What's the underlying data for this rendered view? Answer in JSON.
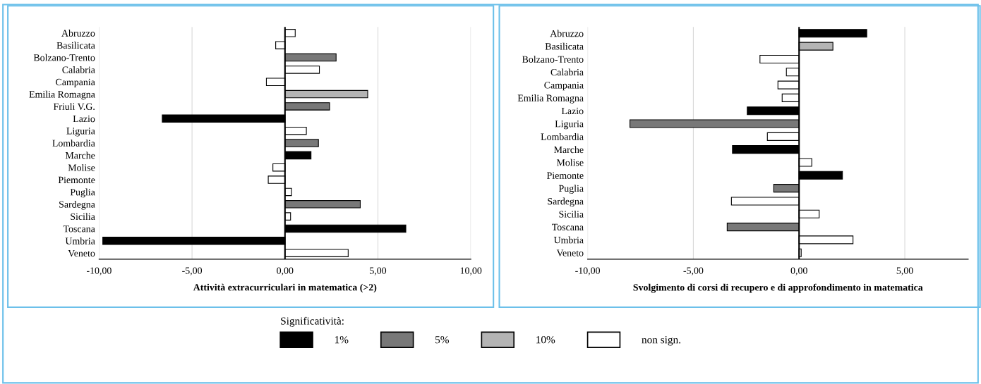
{
  "chart_data": [
    {
      "type": "bar",
      "orientation": "horizontal",
      "xlabel": "Attività extracurriculari in matematica (>2)",
      "legend": "bottom",
      "legend_title": "Significatività:",
      "grid": "x",
      "categories": [
        "Abruzzo",
        "Basilicata",
        "Bolzano-Trento",
        "Calabria",
        "Campania",
        "Emilia Romagna",
        "Friuli V.G.",
        "Lazio",
        "Liguria",
        "Lombardia",
        "Marche",
        "Molise",
        "Piemonte",
        "Puglia",
        "Sardegna",
        "Sicilia",
        "Toscana",
        "Umbria",
        "Veneto"
      ],
      "xlim": [
        -10,
        10
      ],
      "xticks": [
        {
          "value": -10,
          "label": "-10,00"
        },
        {
          "value": -5,
          "label": "-5,00"
        },
        {
          "value": 0,
          "label": "0,00"
        },
        {
          "value": 5,
          "label": "5,00"
        },
        {
          "value": 10,
          "label": "10,00"
        }
      ],
      "ref_lines": [
        {
          "axis": "x",
          "value": 0,
          "color": "#000000"
        }
      ],
      "series": [
        {
          "name": "1%",
          "color": "#000000",
          "values": [
            null,
            null,
            null,
            null,
            null,
            null,
            null,
            -6.6,
            null,
            null,
            1.4,
            null,
            null,
            null,
            null,
            null,
            6.5,
            -9.8,
            null
          ]
        },
        {
          "name": "5%",
          "color": "#787878",
          "values": [
            null,
            null,
            2.75,
            null,
            null,
            null,
            2.4,
            null,
            null,
            1.8,
            null,
            null,
            null,
            null,
            4.05,
            null,
            null,
            null,
            null
          ]
        },
        {
          "name": "10%",
          "color": "#b4b4b4",
          "values": [
            null,
            null,
            null,
            null,
            null,
            4.45,
            null,
            null,
            null,
            null,
            null,
            null,
            null,
            null,
            null,
            null,
            null,
            null,
            null
          ]
        },
        {
          "name": "non sign.",
          "color": "#ffffff",
          "values": [
            0.55,
            -0.5,
            null,
            1.85,
            -1.0,
            null,
            null,
            null,
            1.15,
            null,
            null,
            -0.65,
            -0.9,
            0.35,
            null,
            0.3,
            null,
            null,
            3.4
          ]
        }
      ]
    },
    {
      "type": "bar",
      "orientation": "horizontal",
      "xlabel": "Svolgimento di corsi di recupero e di approfondimento in matematica",
      "grid": "x",
      "categories": [
        "Abruzzo",
        "Basilicata",
        "Bolzano-Trento",
        "Calabria",
        "Campania",
        "Emilia Romagna",
        "Lazio",
        "Liguria",
        "Lombardia",
        "Marche",
        "Molise",
        "Piemonte",
        "Puglia",
        "Sardegna",
        "Sicilia",
        "Toscana",
        "Umbria",
        "Veneto"
      ],
      "xlim": [
        -10,
        8
      ],
      "xticks": [
        {
          "value": -10,
          "label": "-10,00"
        },
        {
          "value": -5,
          "label": "-5,00"
        },
        {
          "value": 0,
          "label": "0,00"
        },
        {
          "value": 5,
          "label": "5,00"
        }
      ],
      "ref_lines": [
        {
          "axis": "x",
          "value": 0,
          "color": "#000000"
        }
      ],
      "series": [
        {
          "color": "#000000",
          "values": [
            3.2,
            null,
            null,
            null,
            null,
            null,
            -2.45,
            null,
            null,
            -3.15,
            null,
            2.05,
            null,
            null,
            null,
            null,
            null,
            null
          ]
        },
        {
          "color": "#787878",
          "values": [
            null,
            null,
            null,
            null,
            null,
            null,
            null,
            -8.0,
            null,
            null,
            null,
            null,
            -1.2,
            null,
            null,
            -3.4,
            null,
            null
          ]
        },
        {
          "color": "#b4b4b4",
          "values": [
            null,
            1.6,
            null,
            null,
            null,
            null,
            null,
            null,
            null,
            null,
            null,
            null,
            null,
            null,
            null,
            null,
            null,
            null
          ]
        },
        {
          "color": "#ffffff",
          "values": [
            null,
            null,
            -1.85,
            -0.6,
            -1.0,
            -0.8,
            null,
            null,
            -1.5,
            null,
            0.6,
            null,
            null,
            -3.2,
            0.95,
            null,
            2.55,
            0.1
          ]
        }
      ]
    }
  ]
}
